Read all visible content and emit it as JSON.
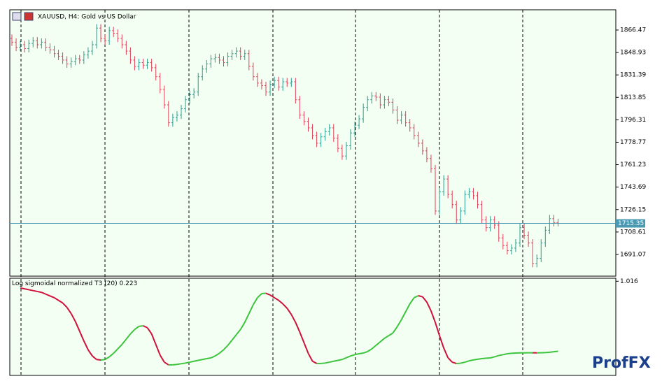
{
  "chart_data": {
    "type": "ohlc",
    "title": "XAUUSD, H4:  Gold vs US Dollar",
    "up_color": "#2a9d8f",
    "down_color": "#e0405a",
    "current_price": 1715.35,
    "current_price_color": "#4a9ab4",
    "ylim": [
      1674.1,
      1882.3
    ],
    "yticks": [
      1866.47,
      1848.93,
      1831.39,
      1813.85,
      1796.31,
      1778.77,
      1761.23,
      1743.69,
      1726.15,
      1708.61,
      1691.07
    ],
    "open": [
      1860,
      1857,
      1853,
      1855,
      1852,
      1856,
      1858,
      1855,
      1857,
      1853,
      1851,
      1848,
      1846,
      1843,
      1840,
      1842,
      1844,
      1843,
      1847,
      1850,
      1855,
      1868,
      1860,
      1858,
      1866,
      1864,
      1860,
      1855,
      1850,
      1843,
      1838,
      1841,
      1839,
      1841,
      1837,
      1830,
      1820,
      1808,
      1794,
      1798,
      1800,
      1805,
      1812,
      1816,
      1818,
      1830,
      1836,
      1840,
      1844,
      1845,
      1843,
      1841,
      1846,
      1848,
      1850,
      1846,
      1848,
      1838,
      1830,
      1825,
      1823,
      1818,
      1824,
      1827,
      1822,
      1826,
      1825,
      1826,
      1812,
      1800,
      1795,
      1790,
      1784,
      1778,
      1783,
      1787,
      1790,
      1782,
      1774,
      1768,
      1776,
      1786,
      1792,
      1797,
      1806,
      1812,
      1815,
      1814,
      1808,
      1812,
      1810,
      1804,
      1796,
      1800,
      1794,
      1790,
      1784,
      1778,
      1772,
      1766,
      1758,
      1725,
      1740,
      1750,
      1738,
      1730,
      1718,
      1725,
      1738,
      1740,
      1737,
      1730,
      1718,
      1712,
      1718,
      1714,
      1704,
      1698,
      1694,
      1696,
      1700,
      1712,
      1706,
      1700,
      1684,
      1688,
      1700,
      1710,
      1719,
      1716
    ],
    "high": [
      1863,
      1860,
      1858,
      1858,
      1859,
      1861,
      1861,
      1860,
      1860,
      1856,
      1854,
      1851,
      1849,
      1846,
      1845,
      1847,
      1847,
      1850,
      1853,
      1858,
      1871,
      1871,
      1863,
      1869,
      1869,
      1867,
      1863,
      1858,
      1853,
      1846,
      1844,
      1844,
      1844,
      1844,
      1840,
      1833,
      1823,
      1811,
      1801,
      1803,
      1808,
      1815,
      1819,
      1821,
      1833,
      1839,
      1843,
      1847,
      1848,
      1848,
      1846,
      1849,
      1851,
      1853,
      1853,
      1851,
      1851,
      1841,
      1833,
      1828,
      1826,
      1827,
      1830,
      1830,
      1829,
      1829,
      1829,
      1829,
      1815,
      1803,
      1798,
      1793,
      1787,
      1786,
      1790,
      1793,
      1793,
      1785,
      1777,
      1779,
      1789,
      1795,
      1800,
      1809,
      1815,
      1818,
      1818,
      1817,
      1815,
      1815,
      1813,
      1807,
      1803,
      1803,
      1797,
      1793,
      1787,
      1781,
      1775,
      1769,
      1761,
      1743,
      1753,
      1753,
      1741,
      1733,
      1728,
      1741,
      1743,
      1743,
      1740,
      1733,
      1721,
      1721,
      1721,
      1717,
      1707,
      1701,
      1699,
      1703,
      1715,
      1715,
      1709,
      1703,
      1691,
      1703,
      1713,
      1722,
      1722,
      1719
    ],
    "low": [
      1854,
      1850,
      1850,
      1849,
      1849,
      1853,
      1852,
      1852,
      1850,
      1848,
      1845,
      1843,
      1840,
      1837,
      1837,
      1839,
      1840,
      1840,
      1844,
      1847,
      1852,
      1857,
      1855,
      1855,
      1861,
      1857,
      1852,
      1847,
      1840,
      1835,
      1835,
      1836,
      1836,
      1834,
      1827,
      1817,
      1805,
      1791,
      1791,
      1795,
      1797,
      1802,
      1809,
      1813,
      1815,
      1827,
      1833,
      1837,
      1841,
      1840,
      1838,
      1838,
      1843,
      1845,
      1843,
      1843,
      1835,
      1827,
      1822,
      1820,
      1815,
      1815,
      1821,
      1819,
      1819,
      1822,
      1822,
      1809,
      1797,
      1792,
      1787,
      1781,
      1775,
      1775,
      1780,
      1784,
      1779,
      1771,
      1765,
      1765,
      1773,
      1783,
      1789,
      1794,
      1803,
      1809,
      1811,
      1805,
      1805,
      1807,
      1801,
      1793,
      1793,
      1791,
      1787,
      1781,
      1775,
      1769,
      1763,
      1755,
      1722,
      1722,
      1737,
      1735,
      1727,
      1715,
      1715,
      1722,
      1735,
      1734,
      1727,
      1715,
      1709,
      1709,
      1711,
      1701,
      1695,
      1691,
      1691,
      1693,
      1697,
      1703,
      1697,
      1681,
      1681,
      1685,
      1697,
      1707,
      1713,
      1713
    ],
    "close": [
      1857,
      1853,
      1855,
      1852,
      1856,
      1858,
      1855,
      1857,
      1853,
      1851,
      1848,
      1846,
      1843,
      1840,
      1842,
      1844,
      1843,
      1847,
      1850,
      1855,
      1868,
      1860,
      1858,
      1866,
      1864,
      1860,
      1855,
      1850,
      1843,
      1838,
      1841,
      1839,
      1841,
      1837,
      1830,
      1820,
      1808,
      1794,
      1798,
      1800,
      1805,
      1812,
      1816,
      1818,
      1830,
      1836,
      1840,
      1844,
      1845,
      1843,
      1841,
      1846,
      1848,
      1850,
      1846,
      1848,
      1838,
      1830,
      1825,
      1823,
      1818,
      1824,
      1827,
      1822,
      1826,
      1825,
      1826,
      1812,
      1800,
      1795,
      1790,
      1784,
      1778,
      1783,
      1787,
      1790,
      1782,
      1774,
      1768,
      1776,
      1786,
      1792,
      1797,
      1806,
      1812,
      1815,
      1814,
      1808,
      1812,
      1810,
      1804,
      1796,
      1800,
      1794,
      1790,
      1784,
      1778,
      1772,
      1766,
      1758,
      1725,
      1740,
      1750,
      1738,
      1730,
      1718,
      1725,
      1738,
      1740,
      1737,
      1730,
      1718,
      1712,
      1718,
      1714,
      1704,
      1698,
      1694,
      1696,
      1700,
      1712,
      1706,
      1700,
      1684,
      1688,
      1700,
      1710,
      1719,
      1716,
      1715.35
    ],
    "indicator": {
      "type": "line",
      "label": "Log sigmoidal normalized T3 (20)",
      "up_color": "#3cc43c",
      "down_color": "#d0103a",
      "y2lim": [
        -0.05,
        1.05
      ],
      "y2ticks": [
        1.016
      ],
      "values": [
        null,
        null,
        0.939,
        0.93,
        0.92,
        0.91,
        0.9,
        0.89,
        0.87,
        0.85,
        0.83,
        0.8,
        0.77,
        0.72,
        0.65,
        0.56,
        0.45,
        0.34,
        0.24,
        0.17,
        0.13,
        0.124,
        0.13,
        0.16,
        0.2,
        0.25,
        0.3,
        0.36,
        0.42,
        0.47,
        0.505,
        0.512,
        0.49,
        0.42,
        0.3,
        0.18,
        0.1,
        0.069,
        0.07,
        0.075,
        0.082,
        0.09,
        0.1,
        0.11,
        0.12,
        0.13,
        0.14,
        0.148,
        0.17,
        0.2,
        0.24,
        0.29,
        0.35,
        0.41,
        0.47,
        0.55,
        0.65,
        0.75,
        0.83,
        0.876,
        0.88,
        0.86,
        0.83,
        0.8,
        0.76,
        0.71,
        0.64,
        0.55,
        0.44,
        0.32,
        0.2,
        0.11,
        0.085,
        0.085,
        0.09,
        0.1,
        0.11,
        0.12,
        0.13,
        0.15,
        0.17,
        0.185,
        0.195,
        0.203,
        0.22,
        0.25,
        0.29,
        0.33,
        0.37,
        0.4,
        0.43,
        0.5,
        0.58,
        0.67,
        0.76,
        0.83,
        0.852,
        0.84,
        0.78,
        0.68,
        0.55,
        0.4,
        0.26,
        0.15,
        0.1,
        0.085,
        0.088,
        0.1,
        0.115,
        0.125,
        0.133,
        0.14,
        0.145,
        0.148,
        0.16,
        0.175,
        0.185,
        0.195,
        0.2,
        0.203,
        0.205,
        0.205,
        0.206,
        0.206,
        0.205,
        0.206,
        0.208,
        0.212,
        0.218,
        0.223
      ]
    },
    "watermark": "ProfFX"
  }
}
